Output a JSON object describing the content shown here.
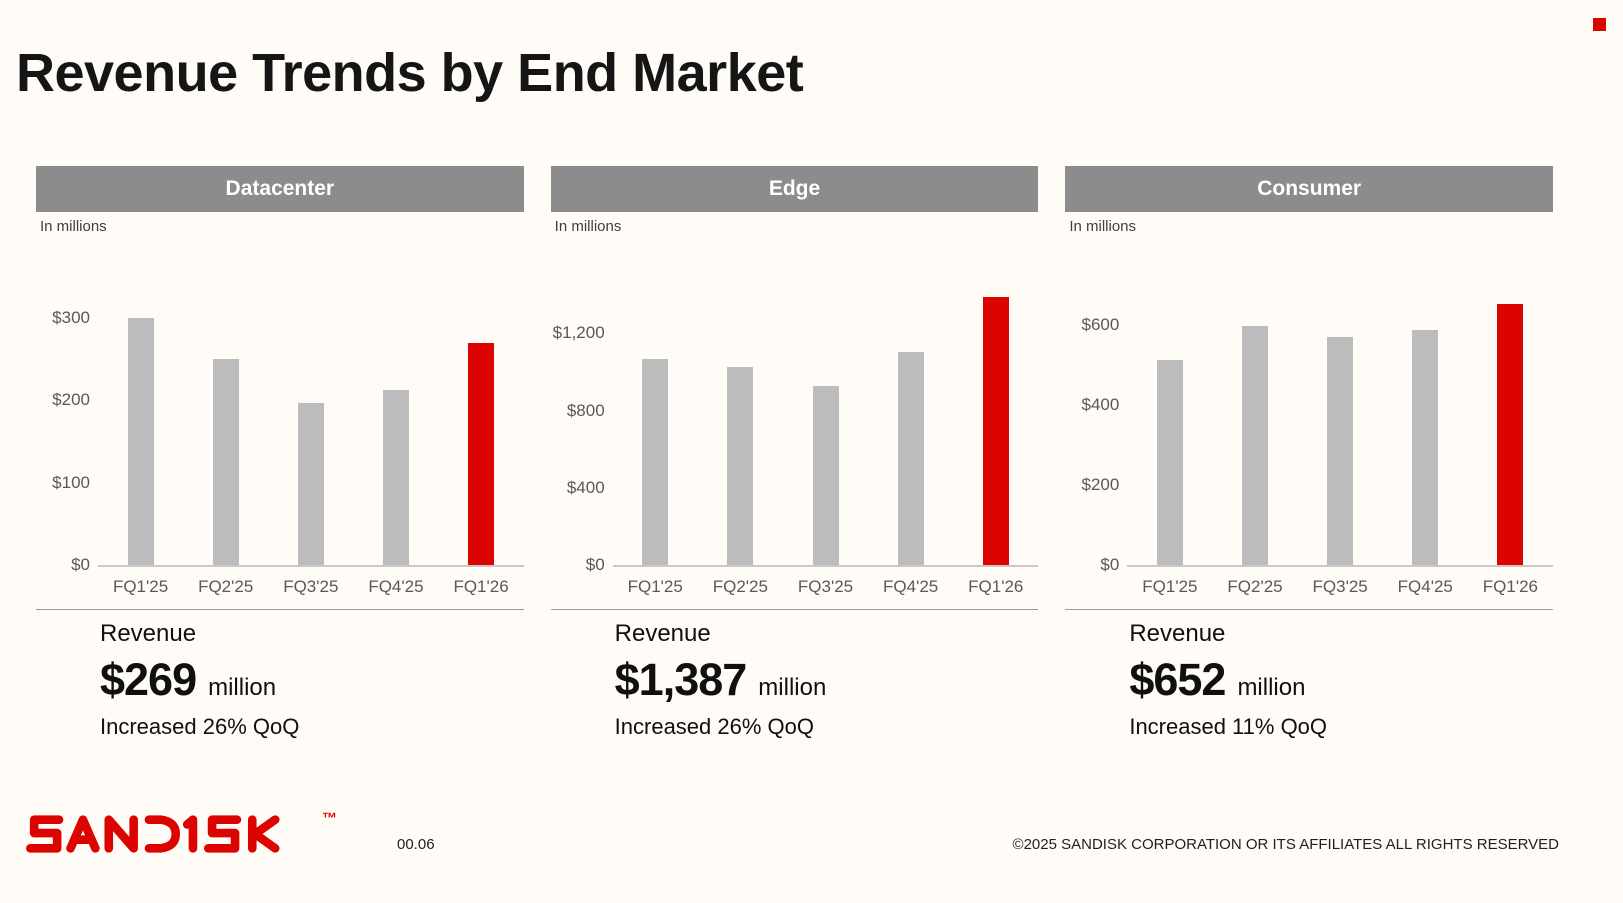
{
  "page": {
    "title": "Revenue Trends by End Market",
    "page_number": "00.06",
    "copyright": "©2025 SANDISK CORPORATION OR ITS AFFILIATES ALL RIGHTS RESERVED",
    "logo_text": "SANDISK",
    "logo_tm": "™"
  },
  "colors": {
    "background": "#FFFBF7",
    "accent_red": "#DC0400",
    "bar_gray": "#BCBCBC",
    "header_band_gray": "#8C8C8C",
    "axis_text": "#595959"
  },
  "panels": [
    {
      "title": "Datacenter",
      "units_label": "In millions",
      "summary": {
        "label": "Revenue",
        "amount": "$269",
        "unit": "million",
        "change": "Increased 26% QoQ"
      }
    },
    {
      "title": "Edge",
      "units_label": "In millions",
      "summary": {
        "label": "Revenue",
        "amount": "$1,387",
        "unit": "million",
        "change": "Increased 26% QoQ"
      }
    },
    {
      "title": "Consumer",
      "units_label": "In millions",
      "summary": {
        "label": "Revenue",
        "amount": "$652",
        "unit": "million",
        "change": "Increased 11% QoQ"
      }
    }
  ],
  "chart_data": [
    {
      "type": "bar",
      "title": "Datacenter",
      "subtitle": "In millions",
      "categories": [
        "FQ1'25",
        "FQ2'25",
        "FQ3'25",
        "FQ4'25",
        "FQ1'26"
      ],
      "values": [
        300,
        250,
        197,
        213,
        269
      ],
      "highlight_index": 4,
      "highlight_color": "#DC0400",
      "bar_color": "#BCBCBC",
      "yticks": [
        0,
        100,
        200,
        300
      ],
      "ytick_labels": [
        "$0",
        "$100",
        "$200",
        "$300"
      ],
      "ylim": [
        0,
        340
      ],
      "grid": false,
      "legend": "none"
    },
    {
      "type": "bar",
      "title": "Edge",
      "subtitle": "In millions",
      "categories": [
        "FQ1'25",
        "FQ2'25",
        "FQ3'25",
        "FQ4'25",
        "FQ1'26"
      ],
      "values": [
        1068,
        1028,
        925,
        1101,
        1387
      ],
      "highlight_index": 4,
      "highlight_color": "#DC0400",
      "bar_color": "#BCBCBC",
      "yticks": [
        0,
        400,
        800,
        1200
      ],
      "ytick_labels": [
        "$0",
        "$400",
        "$800",
        "$1,200"
      ],
      "ylim": [
        0,
        1450
      ],
      "grid": false,
      "legend": "none"
    },
    {
      "type": "bar",
      "title": "Consumer",
      "subtitle": "In millions",
      "categories": [
        "FQ1'25",
        "FQ2'25",
        "FQ3'25",
        "FQ4'25",
        "FQ1'26"
      ],
      "values": [
        512,
        598,
        571,
        587,
        652
      ],
      "highlight_index": 4,
      "highlight_color": "#DC0400",
      "bar_color": "#BCBCBC",
      "yticks": [
        0,
        200,
        400,
        600
      ],
      "ytick_labels": [
        "$0",
        "$200",
        "$400",
        "$600"
      ],
      "ylim": [
        0,
        700
      ],
      "grid": false,
      "legend": "none"
    }
  ]
}
